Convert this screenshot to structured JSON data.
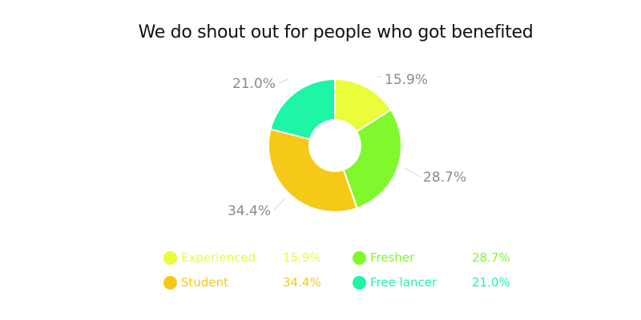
{
  "chart_data": {
    "type": "pie",
    "style": "donut",
    "title": "We do shout out for people who got benefited",
    "start_angle_deg": 0,
    "direction": "clockwise",
    "slices": [
      {
        "label": "Experienced",
        "value": 15.9,
        "display": "15.9%",
        "color": "#eafc3a"
      },
      {
        "label": "Fresher",
        "value": 28.7,
        "display": "28.7%",
        "color": "#81f72d"
      },
      {
        "label": "Student",
        "value": 34.4,
        "display": "34.4%",
        "color": "#f6c919"
      },
      {
        "label": "Free lancer",
        "value": 21.0,
        "display": "21.0%",
        "color": "#1ef5a5"
      }
    ],
    "legend": {
      "placement": "bottom",
      "columns": 2
    }
  }
}
